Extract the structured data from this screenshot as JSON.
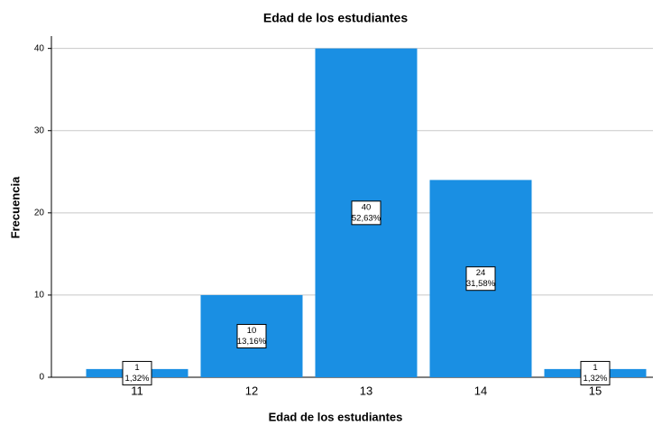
{
  "chart_data": {
    "type": "bar",
    "title": "Edad de los estudiantes",
    "x_label": "Edad de los estudiantes",
    "y_label": "Frecuencia",
    "categories": [
      "11",
      "12",
      "13",
      "14",
      "15"
    ],
    "values": [
      1,
      10,
      40,
      24,
      1
    ],
    "percents": [
      1.32,
      13.16,
      52.63,
      31.58,
      1.32
    ],
    "percent_labels": [
      "1,32%",
      "13,16%",
      "52,63%",
      "31,58%",
      "1,32%"
    ],
    "color": "#1a8fe3",
    "ylim": [
      0,
      41.5
    ],
    "yticks": [
      0,
      10,
      20,
      30,
      40
    ],
    "grid": true
  }
}
